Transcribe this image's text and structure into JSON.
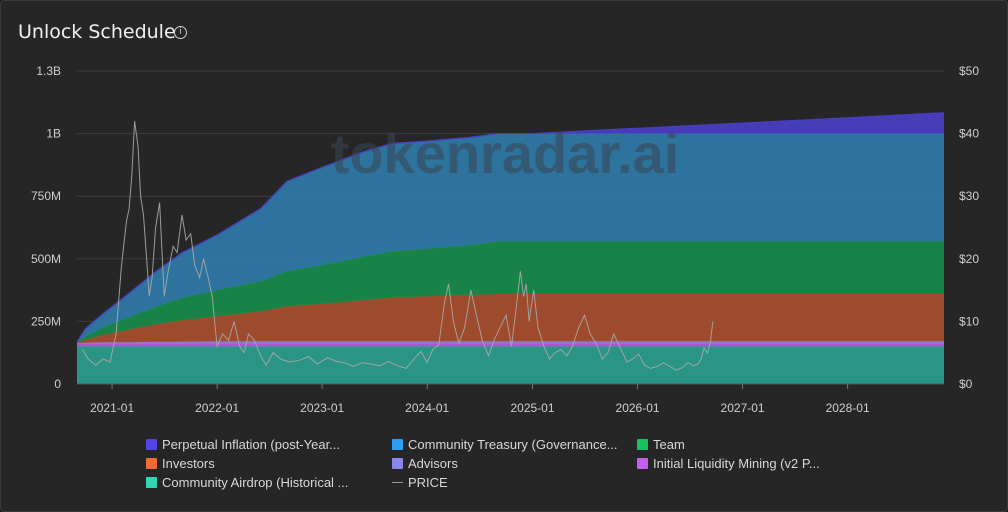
{
  "header": {
    "title": "Unlock Schedule"
  },
  "watermark": "tokenradar.ai",
  "chart_data": {
    "type": "area",
    "title": "Unlock Schedule",
    "x_dates": [
      "2020-09-01",
      "2020-10-01",
      "2020-12-01",
      "2021-03-01",
      "2021-06-01",
      "2021-09-01",
      "2022-01-01",
      "2022-06-01",
      "2022-09-01",
      "2023-01-01",
      "2023-06-01",
      "2023-09-01",
      "2024-01-01",
      "2024-06-01",
      "2024-09-01",
      "2025-01-01",
      "2026-01-01",
      "2027-01-01",
      "2028-01-01",
      "2028-12-01"
    ],
    "series": [
      {
        "name": "Community Airdrop (Historical ...",
        "color": "#2a9d8f",
        "values": [
          150000000,
          150000000,
          150000000,
          150000000,
          150000000,
          150000000,
          150000000,
          150000000,
          150000000,
          150000000,
          150000000,
          150000000,
          150000000,
          150000000,
          150000000,
          150000000,
          150000000,
          150000000,
          150000000,
          150000000
        ]
      },
      {
        "name": "Initial Liquidity Mining (v2 P...",
        "color": "#b05ad8",
        "values": [
          10000000,
          10000000,
          10000000,
          10000000,
          10000000,
          10000000,
          10000000,
          10000000,
          10000000,
          10000000,
          10000000,
          10000000,
          10000000,
          10000000,
          10000000,
          10000000,
          10000000,
          10000000,
          10000000,
          10000000
        ]
      },
      {
        "name": "Advisors",
        "color": "#8c7fe0",
        "values": [
          3000000,
          4000000,
          6000000,
          7000000,
          8000000,
          9000000,
          10000000,
          10000000,
          10000000,
          10000000,
          10000000,
          10000000,
          10000000,
          10000000,
          10000000,
          10000000,
          10000000,
          10000000,
          10000000,
          10000000
        ]
      },
      {
        "name": "Investors",
        "color": "#a84d2e",
        "values": [
          2000000,
          12000000,
          30000000,
          50000000,
          70000000,
          85000000,
          100000000,
          120000000,
          140000000,
          150000000,
          165000000,
          175000000,
          180000000,
          185000000,
          190000000,
          190000000,
          190000000,
          190000000,
          190000000,
          190000000
        ]
      },
      {
        "name": "Team",
        "color": "#178a4a",
        "values": [
          1000000,
          15000000,
          30000000,
          50000000,
          70000000,
          90000000,
          105000000,
          120000000,
          140000000,
          155000000,
          175000000,
          185000000,
          190000000,
          200000000,
          210000000,
          210000000,
          210000000,
          210000000,
          210000000,
          210000000
        ]
      },
      {
        "name": "Community Treasury (Governance...",
        "color": "#2f78a8",
        "values": [
          1000000,
          30000000,
          55000000,
          95000000,
          140000000,
          180000000,
          220000000,
          290000000,
          360000000,
          390000000,
          420000000,
          430000000,
          430000000,
          430000000,
          430000000,
          430000000,
          430000000,
          430000000,
          430000000,
          430000000
        ]
      },
      {
        "name": "Perpetual Inflation (post-Year...",
        "color": "#4a3ec4",
        "values": [
          0,
          0,
          0,
          0,
          0,
          0,
          0,
          0,
          0,
          0,
          0,
          0,
          0,
          0,
          0,
          0,
          21000000,
          42000000,
          63000000,
          83000000
        ]
      }
    ],
    "price": {
      "name": "PRICE",
      "color": "#a8a8a8",
      "dates": [
        "2020-09-20",
        "2020-10-10",
        "2020-11-05",
        "2020-12-01",
        "2020-12-25",
        "2021-01-15",
        "2021-02-01",
        "2021-02-10",
        "2021-02-20",
        "2021-03-01",
        "2021-03-10",
        "2021-03-20",
        "2021-04-01",
        "2021-04-10",
        "2021-04-20",
        "2021-05-01",
        "2021-05-10",
        "2021-05-20",
        "2021-06-01",
        "2021-06-15",
        "2021-07-01",
        "2021-07-15",
        "2021-08-01",
        "2021-08-15",
        "2021-09-01",
        "2021-09-15",
        "2021-10-01",
        "2021-10-15",
        "2021-11-01",
        "2021-11-15",
        "2021-12-01",
        "2021-12-15",
        "2022-01-01",
        "2022-01-20",
        "2022-02-10",
        "2022-03-01",
        "2022-03-20",
        "2022-04-05",
        "2022-04-20",
        "2022-05-10",
        "2022-06-01",
        "2022-06-20",
        "2022-07-15",
        "2022-08-10",
        "2022-09-10",
        "2022-10-15",
        "2022-11-15",
        "2022-12-15",
        "2023-01-20",
        "2023-02-20",
        "2023-03-20",
        "2023-04-20",
        "2023-05-20",
        "2023-06-20",
        "2023-07-20",
        "2023-08-20",
        "2023-09-20",
        "2023-10-20",
        "2023-11-20",
        "2023-12-10",
        "2024-01-01",
        "2024-01-20",
        "2024-02-10",
        "2024-03-01",
        "2024-03-15",
        "2024-04-01",
        "2024-04-20",
        "2024-05-10",
        "2024-06-01",
        "2024-06-20",
        "2024-07-10",
        "2024-08-01",
        "2024-08-20",
        "2024-09-10",
        "2024-10-01",
        "2024-10-20",
        "2024-11-05",
        "2024-11-20",
        "2024-12-01",
        "2024-12-10",
        "2024-12-20",
        "2025-01-05",
        "2025-01-20",
        "2025-02-10",
        "2025-03-01",
        "2025-03-20",
        "2025-04-10",
        "2025-05-01",
        "2025-05-20",
        "2025-06-10",
        "2025-07-01",
        "2025-07-20",
        "2025-08-10",
        "2025-09-01",
        "2025-09-20",
        "2025-10-10",
        "2025-10-25",
        "2025-11-10",
        "2025-11-25",
        "2025-12-15",
        "2026-01-05",
        "2026-01-25",
        "2026-02-15",
        "2026-03-10",
        "2026-04-01",
        "2026-04-25",
        "2026-05-15",
        "2026-06-05",
        "2026-06-25",
        "2026-07-15",
        "2026-07-30",
        "2026-08-10",
        "2026-08-20",
        "2026-09-01",
        "2026-09-10",
        "2026-09-20"
      ],
      "values": [
        5.5,
        4,
        3,
        4,
        3.5,
        8,
        18,
        22,
        26,
        28,
        33,
        42,
        38,
        30,
        27,
        20,
        14,
        17,
        25,
        29,
        14,
        18,
        22,
        21,
        27,
        23,
        24,
        19,
        17,
        20,
        17,
        14,
        6,
        8,
        7,
        10,
        6,
        5,
        8,
        7,
        4.5,
        3,
        5,
        4,
        3.5,
        3.8,
        4.4,
        3.2,
        4.2,
        3.6,
        3.4,
        2.8,
        3.4,
        3.2,
        2.9,
        3.6,
        2.9,
        2.5,
        4.2,
        5.2,
        3.4,
        5.5,
        6.2,
        13,
        16,
        10,
        6.5,
        9,
        15,
        11,
        7,
        4.5,
        7,
        9,
        11,
        6,
        12,
        18,
        14,
        16,
        10,
        15,
        9,
        6,
        4,
        5,
        5.5,
        4.5,
        6,
        9,
        11,
        8,
        6.5,
        4,
        5,
        8,
        6.5,
        5,
        3.5,
        4,
        4.8,
        3,
        2.5,
        2.8,
        3.4,
        2.8,
        2.2,
        2.6,
        3.4,
        2.9,
        3.2,
        4,
        5.8,
        4.9,
        6.4,
        10
      ]
    },
    "x_tick_labels": [
      "2021-01",
      "2022-01",
      "2023-01",
      "2024-01",
      "2025-01",
      "2026-01",
      "2027-01",
      "2028-01"
    ],
    "y_left_tick_labels": [
      "0",
      "250M",
      "500M",
      "750M",
      "1B",
      "1.3B"
    ],
    "y_left_ticks": [
      0,
      250000000,
      500000000,
      750000000,
      1000000000,
      1250000000
    ],
    "y_left_range": [
      0,
      1250000000
    ],
    "y_right_tick_labels": [
      "$0",
      "$10",
      "$20",
      "$30",
      "$40",
      "$50"
    ],
    "y_right_ticks": [
      0,
      10,
      20,
      30,
      40,
      50
    ],
    "y_right_range": [
      0,
      50
    ],
    "x_range": [
      "2020-09-01",
      "2028-12-01"
    ],
    "grid": true,
    "legend_position": "bottom"
  },
  "legend": [
    {
      "label": "Perpetual Inflation (post-Year...",
      "color": "#5145e4",
      "type": "box"
    },
    {
      "label": "Community Treasury (Governance...",
      "color": "#2f9ef0",
      "type": "box"
    },
    {
      "label": "Team",
      "color": "#19c25e",
      "type": "box"
    },
    {
      "label": "Investors",
      "color": "#ef6b34",
      "type": "box"
    },
    {
      "label": "Advisors",
      "color": "#8b86ee",
      "type": "box"
    },
    {
      "label": "Initial Liquidity Mining (v2 P...",
      "color": "#c25fee",
      "type": "box"
    },
    {
      "label": "Community Airdrop (Historical ...",
      "color": "#35d4b5",
      "type": "box"
    },
    {
      "label": "PRICE",
      "color": "#9a9a9a",
      "type": "line"
    }
  ]
}
